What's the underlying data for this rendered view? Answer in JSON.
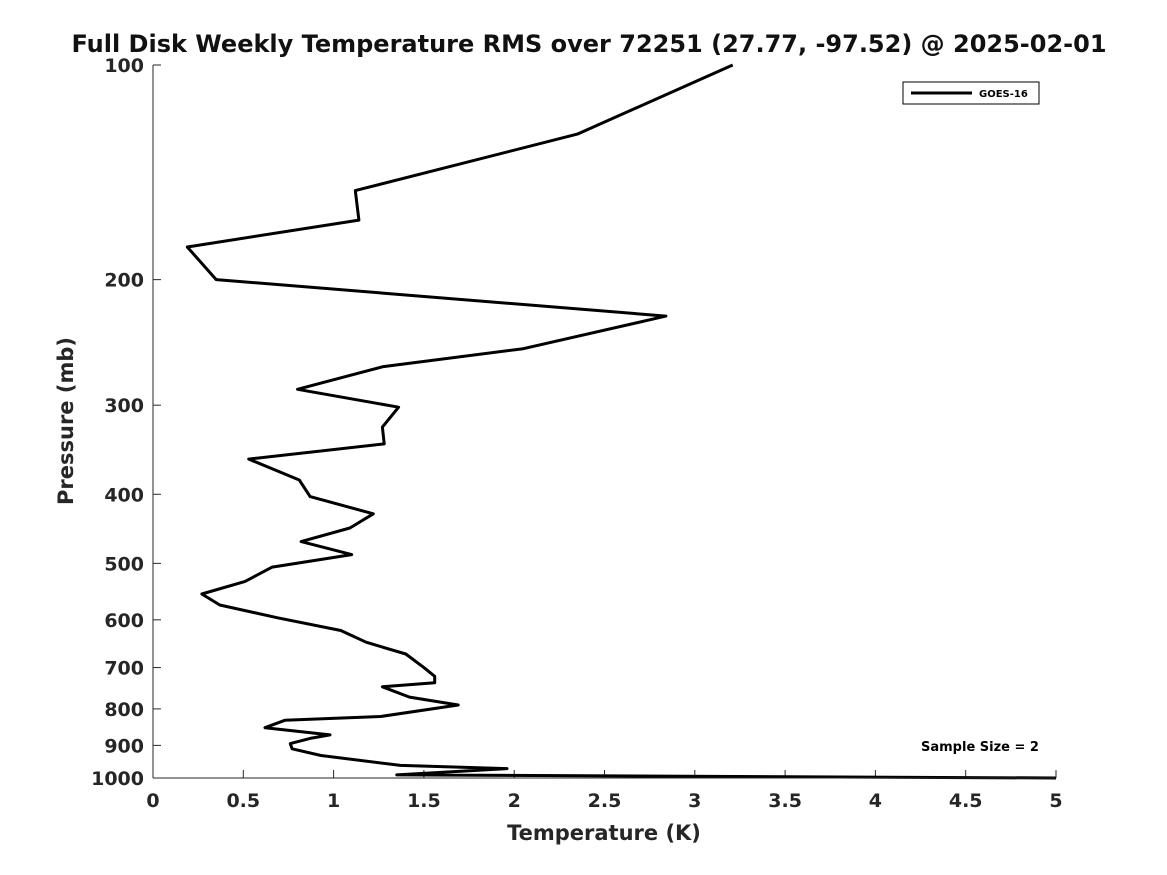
{
  "chart_data": {
    "type": "line",
    "title": "Full Disk Weekly Temperature RMS over 72251 (27.77, -97.52) @ 2025-02-01",
    "xlabel": "Temperature (K)",
    "ylabel": "Pressure (mb)",
    "xlim": [
      0,
      5
    ],
    "ylim": [
      100,
      1000
    ],
    "yscale": "log",
    "y_reversed": true,
    "xticks": [
      "0",
      "0.5",
      "1",
      "1.5",
      "2",
      "2.5",
      "3",
      "3.5",
      "4",
      "4.5",
      "5"
    ],
    "yticks": [
      "100",
      "200",
      "300",
      "400",
      "500",
      "600",
      "700",
      "800",
      "900",
      "1000"
    ],
    "grid": false,
    "legend_position": "top-right",
    "annotation": "Sample Size = 2",
    "series": [
      {
        "name": "GOES-16",
        "color": "#000000",
        "x": [
          3.21,
          2.35,
          1.12,
          1.14,
          0.19,
          0.35,
          2.84,
          2.05,
          1.27,
          0.8,
          1.36,
          1.27,
          1.28,
          0.53,
          0.81,
          0.87,
          1.22,
          1.09,
          0.82,
          1.1,
          0.66,
          0.51,
          0.27,
          0.37,
          0.69,
          1.04,
          1.18,
          1.4,
          1.5,
          1.56,
          1.56,
          1.27,
          1.42,
          1.69,
          1.26,
          0.73,
          0.62,
          0.98,
          0.87,
          0.76,
          0.77,
          0.93,
          1.37,
          1.96,
          1.35,
          5.0
        ],
        "y": [
          100,
          125,
          150,
          165,
          180,
          200,
          225,
          250,
          265,
          285,
          302,
          322,
          340,
          357,
          382,
          403,
          426,
          446,
          466,
          486,
          506,
          530,
          552,
          572,
          596,
          621,
          645,
          670,
          700,
          720,
          735,
          745,
          770,
          790,
          820,
          830,
          850,
          870,
          880,
          895,
          910,
          930,
          960,
          970,
          990,
          1000
        ]
      }
    ]
  }
}
